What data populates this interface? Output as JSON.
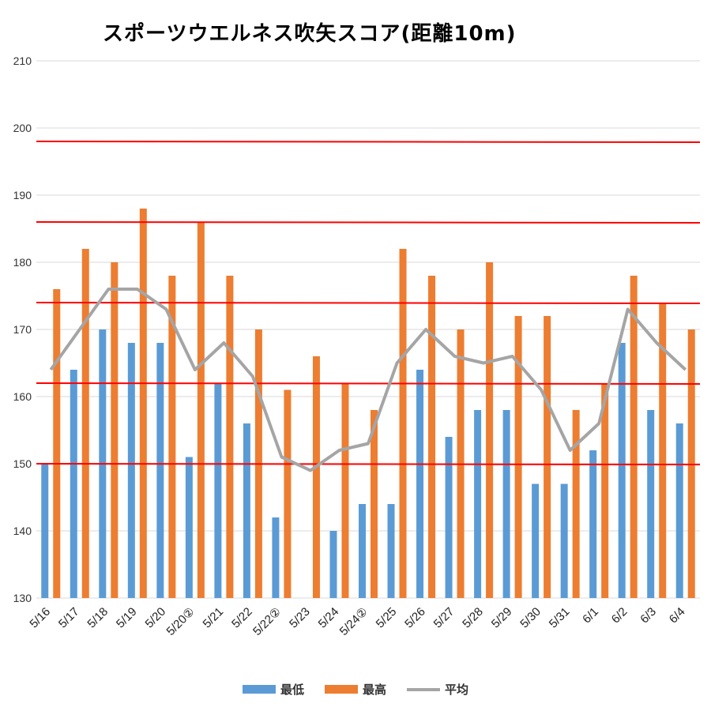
{
  "chart_data": {
    "type": "bar",
    "title": "スポーツウエルネス吹矢スコア(距離10m)",
    "categories": [
      "5/16",
      "5/17",
      "5/18",
      "5/19",
      "5/20",
      "5/20②",
      "5/21",
      "5/22",
      "5/22②",
      "5/23",
      "5/24",
      "5/24②",
      "5/25",
      "5/26",
      "5/27",
      "5/28",
      "5/29",
      "5/30",
      "5/31",
      "6/1",
      "6/2",
      "6/3",
      "6/4"
    ],
    "series": [
      {
        "name": "最低",
        "type": "bar",
        "color": "#5b9bd5",
        "values": [
          150,
          164,
          170,
          168,
          168,
          151,
          162,
          156,
          142,
          null,
          140,
          144,
          144,
          164,
          154,
          158,
          158,
          147,
          147,
          152,
          168,
          158,
          156
        ]
      },
      {
        "name": "最高",
        "type": "bar",
        "color": "#ed7d31",
        "values": [
          176,
          182,
          180,
          188,
          178,
          186,
          178,
          170,
          161,
          166,
          162,
          158,
          182,
          178,
          170,
          180,
          172,
          172,
          158,
          162,
          178,
          174,
          170
        ]
      },
      {
        "name": "平均",
        "type": "line",
        "color": "#a5a5a5",
        "values": [
          164,
          170,
          176,
          176,
          173,
          164,
          168,
          163,
          151,
          149,
          152,
          153,
          165,
          170,
          166,
          165,
          166,
          161,
          152,
          156,
          173,
          168,
          164
        ]
      }
    ],
    "reference_lines": [
      198,
      186,
      174,
      162,
      150
    ],
    "reference_line_color": "#ff0000",
    "ylim": [
      130,
      210
    ],
    "yticks": [
      130,
      140,
      150,
      160,
      170,
      180,
      190,
      200,
      210
    ],
    "grid": true,
    "legend_position": "bottom",
    "xlabel": "",
    "ylabel": ""
  }
}
